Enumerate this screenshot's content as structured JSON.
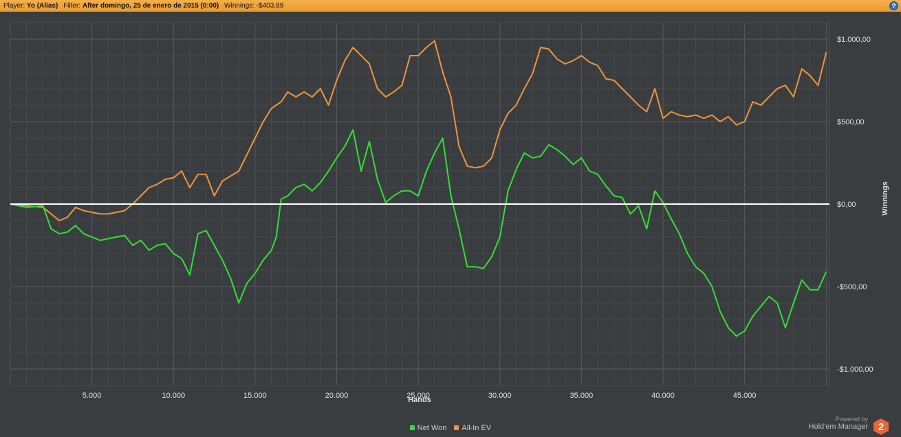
{
  "topbar": {
    "player_label": "Player:",
    "player_value": "Yo (Alias)",
    "filter_label": "Filter:",
    "filter_value": "After domingo, 25 de enero de 2015 (0:00)",
    "winnings_label": "Winnings:",
    "winnings_value": "-$403,89",
    "help_icon": "?"
  },
  "branding": {
    "powered_by": "Powered by",
    "name": "Hold'em Manager",
    "logo_text": "2"
  },
  "colors": {
    "net_won": "#33e033",
    "all_in_ev": "#f0953a",
    "background": "#3a3d40",
    "zero_line": "#ffffff"
  },
  "chart_data": {
    "type": "line",
    "xlabel": "Hands",
    "ylabel": "Winnings",
    "xlim": [
      0,
      50200
    ],
    "ylim": [
      -1000,
      1000
    ],
    "xticks": [
      5000,
      10000,
      15000,
      20000,
      25000,
      30000,
      35000,
      40000,
      45000
    ],
    "xtick_labels": [
      "5.000",
      "10.000",
      "15.000",
      "20.000",
      "25.000",
      "30.000",
      "35.000",
      "40.000",
      "45.000"
    ],
    "yticks": [
      1000,
      500,
      0,
      -500,
      -1000
    ],
    "ytick_labels": [
      "$1.000,00",
      "$500,00",
      "$0,00",
      "-$500,00",
      "-$1.000,00"
    ],
    "grid": true,
    "legend_position": "bottom-center",
    "series": [
      {
        "name": "Net Won",
        "color": "#33e033",
        "x": [
          0,
          1000,
          2000,
          2500,
          3000,
          3500,
          4000,
          4500,
          5000,
          5500,
          6000,
          6500,
          7000,
          7500,
          8000,
          8500,
          9000,
          9500,
          10000,
          10500,
          11000,
          11500,
          12000,
          12500,
          13000,
          13500,
          14000,
          14500,
          15000,
          15500,
          16000,
          16300,
          16600,
          17000,
          17500,
          18000,
          18500,
          19000,
          19500,
          20000,
          20500,
          21000,
          21500,
          22000,
          22500,
          23000,
          23500,
          24000,
          24500,
          25000,
          25500,
          26000,
          26500,
          27000,
          27500,
          28000,
          28500,
          29000,
          29500,
          30000,
          30500,
          31000,
          31500,
          32000,
          32500,
          33000,
          33500,
          34000,
          34500,
          35000,
          35500,
          36000,
          36500,
          37000,
          37500,
          38000,
          38500,
          39000,
          39500,
          40000,
          40500,
          41000,
          41500,
          42000,
          42500,
          43000,
          43500,
          44000,
          44500,
          45000,
          45500,
          46000,
          46500,
          47000,
          47500,
          48000,
          48500,
          49000,
          49500,
          50000
        ],
        "values": [
          0,
          -20,
          -10,
          -150,
          -180,
          -170,
          -130,
          -180,
          -200,
          -220,
          -210,
          -200,
          -190,
          -250,
          -220,
          -280,
          -250,
          -240,
          -300,
          -330,
          -430,
          -180,
          -160,
          -250,
          -340,
          -450,
          -600,
          -480,
          -420,
          -340,
          -280,
          -200,
          30,
          50,
          100,
          120,
          80,
          130,
          200,
          280,
          350,
          450,
          200,
          380,
          150,
          10,
          50,
          80,
          80,
          50,
          200,
          310,
          400,
          50,
          -150,
          -380,
          -380,
          -390,
          -320,
          -200,
          80,
          210,
          310,
          280,
          290,
          360,
          330,
          290,
          240,
          280,
          200,
          180,
          110,
          50,
          40,
          -60,
          -10,
          -150,
          80,
          10,
          -90,
          -180,
          -300,
          -380,
          -420,
          -500,
          -650,
          -750,
          -800,
          -770,
          -680,
          -620,
          -560,
          -600,
          -750,
          -600,
          -460,
          -520,
          -520,
          -410
        ]
      },
      {
        "name": "All-In EV",
        "color": "#f0953a",
        "x": [
          0,
          1000,
          2000,
          2500,
          3000,
          3500,
          4000,
          4500,
          5000,
          5500,
          6000,
          6500,
          7000,
          7500,
          8000,
          8500,
          9000,
          9500,
          10000,
          10500,
          11000,
          11500,
          12000,
          12500,
          13000,
          13500,
          14000,
          14500,
          15000,
          15500,
          16000,
          16300,
          16600,
          17000,
          17500,
          18000,
          18500,
          19000,
          19500,
          20000,
          20500,
          21000,
          21500,
          22000,
          22500,
          23000,
          23500,
          24000,
          24500,
          25000,
          25500,
          26000,
          26500,
          27000,
          27500,
          28000,
          28500,
          29000,
          29500,
          30000,
          30500,
          31000,
          31500,
          32000,
          32500,
          33000,
          33500,
          34000,
          34500,
          35000,
          35500,
          36000,
          36500,
          37000,
          37500,
          38000,
          38500,
          39000,
          39500,
          40000,
          40500,
          41000,
          41500,
          42000,
          42500,
          43000,
          43500,
          44000,
          44500,
          45000,
          45500,
          46000,
          46500,
          47000,
          47500,
          48000,
          48500,
          49000,
          49500,
          50000
        ],
        "values": [
          0,
          -10,
          -20,
          -60,
          -100,
          -80,
          -20,
          -40,
          -50,
          -60,
          -60,
          -50,
          -40,
          0,
          50,
          100,
          120,
          150,
          160,
          200,
          100,
          180,
          180,
          50,
          140,
          170,
          200,
          300,
          400,
          500,
          580,
          600,
          620,
          680,
          650,
          680,
          650,
          700,
          600,
          750,
          870,
          950,
          900,
          850,
          700,
          650,
          680,
          720,
          900,
          900,
          950,
          990,
          800,
          650,
          350,
          230,
          220,
          230,
          280,
          450,
          550,
          600,
          700,
          790,
          950,
          940,
          880,
          850,
          870,
          900,
          860,
          840,
          760,
          750,
          700,
          650,
          600,
          560,
          700,
          520,
          560,
          540,
          530,
          540,
          520,
          540,
          500,
          530,
          480,
          500,
          620,
          600,
          650,
          700,
          720,
          650,
          820,
          780,
          720,
          920
        ]
      }
    ]
  }
}
